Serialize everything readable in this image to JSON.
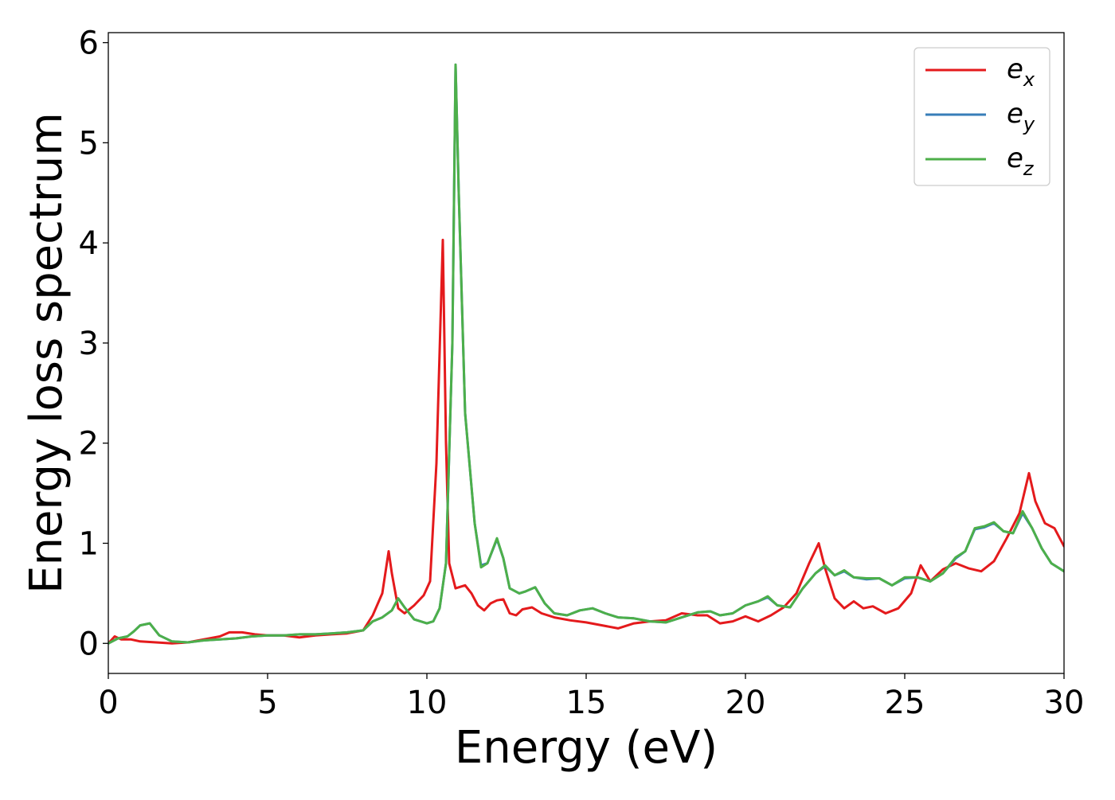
{
  "chart_data": {
    "type": "line",
    "title": "",
    "xlabel": "Energy (eV)",
    "ylabel": "Energy loss spectrum",
    "xlim": [
      0,
      30
    ],
    "ylim": [
      -0.3,
      6.1
    ],
    "xticks": [
      0,
      5,
      10,
      15,
      20,
      25,
      30
    ],
    "yticks": [
      0,
      1,
      2,
      3,
      4,
      5,
      6
    ],
    "grid": false,
    "legend_position": "top-right",
    "series": [
      {
        "name": "e",
        "subscript": "x",
        "color": "#e41a1c",
        "points": [
          [
            0,
            0.0
          ],
          [
            0.2,
            0.07
          ],
          [
            0.4,
            0.04
          ],
          [
            0.7,
            0.04
          ],
          [
            1.0,
            0.02
          ],
          [
            1.5,
            0.01
          ],
          [
            2.0,
            0.0
          ],
          [
            2.5,
            0.01
          ],
          [
            3.0,
            0.04
          ],
          [
            3.5,
            0.07
          ],
          [
            3.8,
            0.11
          ],
          [
            4.2,
            0.11
          ],
          [
            4.6,
            0.09
          ],
          [
            5.0,
            0.08
          ],
          [
            5.5,
            0.08
          ],
          [
            6.0,
            0.06
          ],
          [
            6.5,
            0.08
          ],
          [
            7.0,
            0.09
          ],
          [
            7.5,
            0.1
          ],
          [
            8.0,
            0.13
          ],
          [
            8.3,
            0.28
          ],
          [
            8.6,
            0.5
          ],
          [
            8.8,
            0.92
          ],
          [
            8.9,
            0.7
          ],
          [
            9.1,
            0.35
          ],
          [
            9.3,
            0.3
          ],
          [
            9.6,
            0.38
          ],
          [
            9.9,
            0.48
          ],
          [
            10.1,
            0.62
          ],
          [
            10.3,
            1.8
          ],
          [
            10.5,
            4.03
          ],
          [
            10.6,
            2.0
          ],
          [
            10.7,
            0.8
          ],
          [
            10.9,
            0.55
          ],
          [
            11.2,
            0.58
          ],
          [
            11.4,
            0.5
          ],
          [
            11.6,
            0.38
          ],
          [
            11.8,
            0.33
          ],
          [
            12.0,
            0.4
          ],
          [
            12.2,
            0.43
          ],
          [
            12.4,
            0.44
          ],
          [
            12.6,
            0.3
          ],
          [
            12.8,
            0.28
          ],
          [
            13.0,
            0.34
          ],
          [
            13.3,
            0.36
          ],
          [
            13.6,
            0.3
          ],
          [
            14.0,
            0.26
          ],
          [
            14.5,
            0.23
          ],
          [
            15.0,
            0.21
          ],
          [
            15.5,
            0.18
          ],
          [
            16.0,
            0.15
          ],
          [
            16.5,
            0.2
          ],
          [
            17.0,
            0.22
          ],
          [
            17.5,
            0.23
          ],
          [
            18.0,
            0.3
          ],
          [
            18.5,
            0.28
          ],
          [
            18.8,
            0.28
          ],
          [
            19.2,
            0.2
          ],
          [
            19.6,
            0.22
          ],
          [
            20.0,
            0.27
          ],
          [
            20.4,
            0.22
          ],
          [
            20.8,
            0.28
          ],
          [
            21.2,
            0.36
          ],
          [
            21.6,
            0.5
          ],
          [
            22.0,
            0.8
          ],
          [
            22.3,
            1.0
          ],
          [
            22.5,
            0.75
          ],
          [
            22.8,
            0.45
          ],
          [
            23.1,
            0.35
          ],
          [
            23.4,
            0.42
          ],
          [
            23.7,
            0.35
          ],
          [
            24.0,
            0.37
          ],
          [
            24.4,
            0.3
          ],
          [
            24.8,
            0.35
          ],
          [
            25.2,
            0.5
          ],
          [
            25.5,
            0.78
          ],
          [
            25.8,
            0.62
          ],
          [
            26.2,
            0.74
          ],
          [
            26.6,
            0.8
          ],
          [
            27.0,
            0.75
          ],
          [
            27.4,
            0.72
          ],
          [
            27.8,
            0.82
          ],
          [
            28.2,
            1.05
          ],
          [
            28.6,
            1.3
          ],
          [
            28.9,
            1.7
          ],
          [
            29.1,
            1.42
          ],
          [
            29.4,
            1.2
          ],
          [
            29.7,
            1.15
          ],
          [
            30.0,
            0.97
          ]
        ]
      },
      {
        "name": "e",
        "subscript": "y",
        "color": "#377eb8",
        "points": [
          [
            0,
            0.0
          ],
          [
            0.3,
            0.05
          ],
          [
            0.6,
            0.07
          ],
          [
            0.8,
            0.12
          ],
          [
            1.0,
            0.18
          ],
          [
            1.3,
            0.2
          ],
          [
            1.6,
            0.08
          ],
          [
            2.0,
            0.02
          ],
          [
            2.5,
            0.01
          ],
          [
            3.0,
            0.03
          ],
          [
            3.5,
            0.04
          ],
          [
            4.0,
            0.05
          ],
          [
            4.5,
            0.07
          ],
          [
            5.0,
            0.08
          ],
          [
            5.5,
            0.08
          ],
          [
            6.0,
            0.09
          ],
          [
            6.5,
            0.09
          ],
          [
            7.0,
            0.1
          ],
          [
            7.5,
            0.11
          ],
          [
            8.0,
            0.13
          ],
          [
            8.3,
            0.22
          ],
          [
            8.6,
            0.26
          ],
          [
            8.9,
            0.33
          ],
          [
            9.1,
            0.45
          ],
          [
            9.3,
            0.36
          ],
          [
            9.6,
            0.24
          ],
          [
            10.0,
            0.2
          ],
          [
            10.2,
            0.22
          ],
          [
            10.4,
            0.35
          ],
          [
            10.6,
            0.8
          ],
          [
            10.8,
            3.0
          ],
          [
            10.9,
            5.78
          ],
          [
            11.0,
            4.5
          ],
          [
            11.2,
            2.3
          ],
          [
            11.5,
            1.2
          ],
          [
            11.7,
            0.78
          ],
          [
            11.9,
            0.8
          ],
          [
            12.2,
            1.04
          ],
          [
            12.4,
            0.85
          ],
          [
            12.6,
            0.55
          ],
          [
            12.9,
            0.5
          ],
          [
            13.1,
            0.52
          ],
          [
            13.4,
            0.56
          ],
          [
            13.7,
            0.4
          ],
          [
            14.0,
            0.3
          ],
          [
            14.4,
            0.28
          ],
          [
            14.8,
            0.33
          ],
          [
            15.2,
            0.35
          ],
          [
            15.6,
            0.3
          ],
          [
            16.0,
            0.26
          ],
          [
            16.5,
            0.25
          ],
          [
            17.0,
            0.22
          ],
          [
            17.5,
            0.21
          ],
          [
            18.0,
            0.26
          ],
          [
            18.5,
            0.31
          ],
          [
            18.9,
            0.32
          ],
          [
            19.2,
            0.28
          ],
          [
            19.6,
            0.3
          ],
          [
            20.0,
            0.38
          ],
          [
            20.4,
            0.42
          ],
          [
            20.7,
            0.46
          ],
          [
            21.0,
            0.38
          ],
          [
            21.4,
            0.36
          ],
          [
            21.8,
            0.55
          ],
          [
            22.2,
            0.7
          ],
          [
            22.5,
            0.77
          ],
          [
            22.8,
            0.68
          ],
          [
            23.1,
            0.72
          ],
          [
            23.4,
            0.66
          ],
          [
            23.8,
            0.64
          ],
          [
            24.2,
            0.65
          ],
          [
            24.6,
            0.58
          ],
          [
            25.0,
            0.65
          ],
          [
            25.4,
            0.66
          ],
          [
            25.8,
            0.62
          ],
          [
            26.2,
            0.7
          ],
          [
            26.6,
            0.85
          ],
          [
            26.9,
            0.92
          ],
          [
            27.2,
            1.14
          ],
          [
            27.5,
            1.16
          ],
          [
            27.8,
            1.2
          ],
          [
            28.1,
            1.12
          ],
          [
            28.4,
            1.1
          ],
          [
            28.7,
            1.3
          ],
          [
            29.0,
            1.15
          ],
          [
            29.3,
            0.95
          ],
          [
            29.6,
            0.8
          ],
          [
            30.0,
            0.72
          ]
        ]
      },
      {
        "name": "e",
        "subscript": "z",
        "color": "#4daf4a",
        "points": [
          [
            0,
            0.0
          ],
          [
            0.3,
            0.05
          ],
          [
            0.6,
            0.07
          ],
          [
            0.8,
            0.12
          ],
          [
            1.0,
            0.18
          ],
          [
            1.3,
            0.2
          ],
          [
            1.6,
            0.08
          ],
          [
            2.0,
            0.02
          ],
          [
            2.5,
            0.01
          ],
          [
            3.0,
            0.03
          ],
          [
            3.5,
            0.04
          ],
          [
            4.0,
            0.05
          ],
          [
            4.5,
            0.07
          ],
          [
            5.0,
            0.08
          ],
          [
            5.5,
            0.08
          ],
          [
            6.0,
            0.09
          ],
          [
            6.5,
            0.09
          ],
          [
            7.0,
            0.1
          ],
          [
            7.5,
            0.11
          ],
          [
            8.0,
            0.13
          ],
          [
            8.3,
            0.22
          ],
          [
            8.6,
            0.26
          ],
          [
            8.9,
            0.33
          ],
          [
            9.1,
            0.45
          ],
          [
            9.3,
            0.36
          ],
          [
            9.6,
            0.24
          ],
          [
            10.0,
            0.2
          ],
          [
            10.2,
            0.22
          ],
          [
            10.4,
            0.35
          ],
          [
            10.6,
            0.8
          ],
          [
            10.8,
            3.0
          ],
          [
            10.9,
            5.78
          ],
          [
            11.0,
            4.5
          ],
          [
            11.2,
            2.3
          ],
          [
            11.5,
            1.2
          ],
          [
            11.7,
            0.76
          ],
          [
            11.9,
            0.8
          ],
          [
            12.2,
            1.05
          ],
          [
            12.4,
            0.85
          ],
          [
            12.6,
            0.55
          ],
          [
            12.9,
            0.5
          ],
          [
            13.1,
            0.52
          ],
          [
            13.4,
            0.56
          ],
          [
            13.7,
            0.4
          ],
          [
            14.0,
            0.3
          ],
          [
            14.4,
            0.28
          ],
          [
            14.8,
            0.33
          ],
          [
            15.2,
            0.35
          ],
          [
            15.6,
            0.3
          ],
          [
            16.0,
            0.26
          ],
          [
            16.5,
            0.25
          ],
          [
            17.0,
            0.22
          ],
          [
            17.5,
            0.21
          ],
          [
            18.0,
            0.26
          ],
          [
            18.5,
            0.31
          ],
          [
            18.9,
            0.32
          ],
          [
            19.2,
            0.28
          ],
          [
            19.6,
            0.3
          ],
          [
            20.0,
            0.38
          ],
          [
            20.4,
            0.42
          ],
          [
            20.7,
            0.47
          ],
          [
            21.0,
            0.38
          ],
          [
            21.4,
            0.36
          ],
          [
            21.8,
            0.55
          ],
          [
            22.2,
            0.7
          ],
          [
            22.5,
            0.78
          ],
          [
            22.8,
            0.68
          ],
          [
            23.1,
            0.73
          ],
          [
            23.4,
            0.66
          ],
          [
            23.8,
            0.65
          ],
          [
            24.2,
            0.65
          ],
          [
            24.6,
            0.58
          ],
          [
            25.0,
            0.66
          ],
          [
            25.4,
            0.66
          ],
          [
            25.8,
            0.62
          ],
          [
            26.2,
            0.7
          ],
          [
            26.6,
            0.86
          ],
          [
            26.9,
            0.92
          ],
          [
            27.2,
            1.15
          ],
          [
            27.5,
            1.17
          ],
          [
            27.8,
            1.21
          ],
          [
            28.1,
            1.12
          ],
          [
            28.4,
            1.1
          ],
          [
            28.7,
            1.32
          ],
          [
            29.0,
            1.15
          ],
          [
            29.3,
            0.95
          ],
          [
            29.6,
            0.8
          ],
          [
            30.0,
            0.72
          ]
        ]
      }
    ]
  }
}
